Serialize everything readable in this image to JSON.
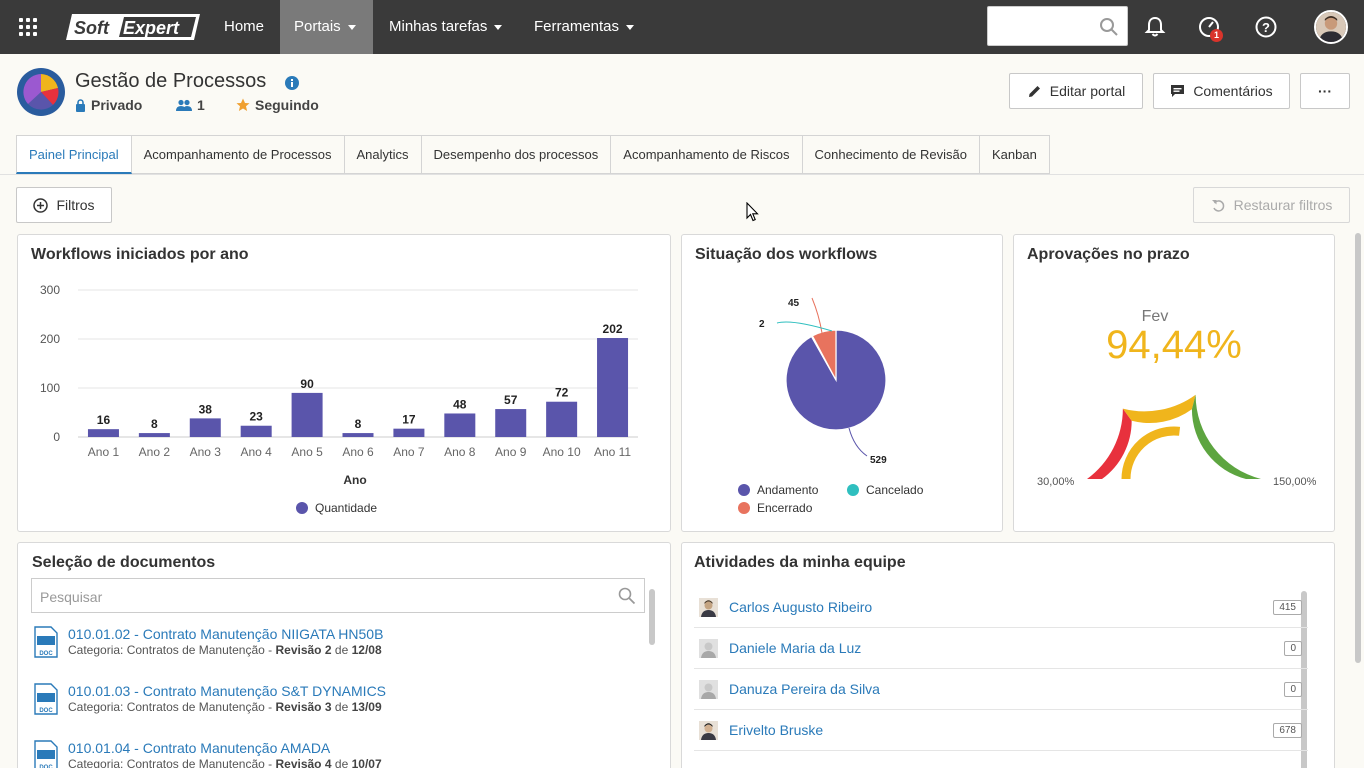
{
  "topbar": {
    "brand": "SoftExpert",
    "nav": [
      "Home",
      "Portais",
      "Minhas tarefas",
      "Ferramentas"
    ],
    "notification_count": "1"
  },
  "header": {
    "title": "Gestão de Processos",
    "privacy": "Privado",
    "members": "1",
    "following": "Seguindo",
    "edit_label": "Editar portal",
    "comments_label": "Comentários",
    "more_label": "···"
  },
  "tabs": [
    "Painel Principal",
    "Acompanhamento de Processos",
    "Analytics",
    "Desempenho dos processos",
    "Acompanhamento de Riscos",
    "Conhecimento de Revisão",
    "Kanban"
  ],
  "toolbar": {
    "filters_label": "Filtros",
    "restore_label": "Restaurar filtros"
  },
  "colors": {
    "primary": "#5a55ab",
    "cancel": "#2fbfbf",
    "closed": "#e8735e",
    "link": "#2a7ab9",
    "gauge_red": "#e8313d",
    "gauge_yellow": "#f0b51c",
    "gauge_green": "#5da540"
  },
  "chart_data": [
    {
      "type": "bar",
      "title": "Workflows iniciados por ano",
      "categories": [
        "Ano 1",
        "Ano 2",
        "Ano 3",
        "Ano 4",
        "Ano 5",
        "Ano 6",
        "Ano 7",
        "Ano 8",
        "Ano 9",
        "Ano 10",
        "Ano 11"
      ],
      "series": [
        {
          "name": "Quantidade",
          "values": [
            16,
            8,
            38,
            23,
            90,
            8,
            17,
            48,
            57,
            72,
            202
          ]
        }
      ],
      "xlabel": "Ano",
      "ylabel": "",
      "ylim": [
        0,
        300
      ],
      "yticks": [
        0,
        100,
        200,
        300
      ],
      "legend": "bottom"
    },
    {
      "type": "pie",
      "title": "Situação dos workflows",
      "labels": [
        "Andamento",
        "Encerrado",
        "Cancelado"
      ],
      "values": [
        529,
        45,
        2
      ],
      "legend": "bottom"
    },
    {
      "type": "gauge",
      "title": "Aprovações no prazo",
      "period": "Fev",
      "value_label": "94,44%",
      "value": 94.44,
      "min_label": "30,00%",
      "max_label": "150,00%",
      "min": 30,
      "max": 150
    }
  ],
  "documents": {
    "title": "Seleção de documentos",
    "search_placeholder": "Pesquisar",
    "category_label": "Categoria:",
    "revision_label": "Revisão",
    "of_label": "de",
    "items": [
      {
        "name": "010.01.02 - Contrato Manutenção NIIGATA HN50B",
        "category": "Contratos de Manutenção",
        "revision": "2",
        "date": "12/08"
      },
      {
        "name": "010.01.03 - Contrato Manutenção S&T DYNAMICS",
        "category": "Contratos de Manutenção",
        "revision": "3",
        "date": "13/09"
      },
      {
        "name": "010.01.04 - Contrato Manutenção AMADA",
        "category": "Contratos de Manutenção",
        "revision": "4",
        "date": "10/07"
      }
    ]
  },
  "team": {
    "title": "Atividades da minha equipe",
    "members": [
      {
        "name": "Carlos Augusto Ribeiro",
        "count": "415"
      },
      {
        "name": "Daniele Maria da Luz",
        "count": "0"
      },
      {
        "name": "Danuza Pereira da Silva",
        "count": "0"
      },
      {
        "name": "Erivelto Bruske",
        "count": "678"
      }
    ]
  }
}
